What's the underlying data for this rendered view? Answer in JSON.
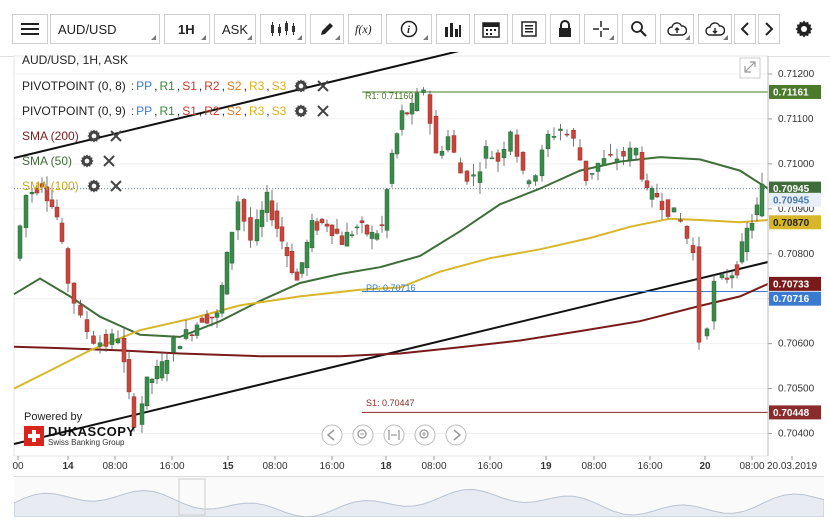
{
  "toolbar": {
    "instrument": "AUD/USD",
    "timeframe": "1H",
    "side": "ASK"
  },
  "legend": {
    "title": "AUD/USD, 1H, ASK",
    "pivot1_name": "PIVOTPOINT (0, 8)",
    "pivot2_name": "PIVOTPOINT (0, 9)",
    "pivot_levels_sep": ":",
    "pivot_levels": [
      "PP",
      "R1",
      "S1",
      "R2",
      "S2",
      "R3",
      "S3"
    ],
    "sma200": "SMA (200)",
    "sma50": "SMA (50)",
    "sma100": "SMA (100)"
  },
  "levels": {
    "r1_label": "R1: 0.71160",
    "pp_label": "PP: 0.70716",
    "s1_label": "S1: 0.70447"
  },
  "price_axis": [
    "0.71200",
    "0.71100",
    "0.71000",
    "0.70900",
    "0.70800",
    "0.70700",
    "0.70600",
    "0.70500",
    "0.70400"
  ],
  "price_badges": {
    "r1": "0.71161",
    "sma50": "0.70945",
    "current": "0.70945",
    "sma100": "0.70870",
    "sma200": "0.70733",
    "pp": "0.70716",
    "s1": "0.70448"
  },
  "time_axis": [
    "00",
    "14",
    "08:00",
    "16:00",
    "15",
    "08:00",
    "16:00",
    "18",
    "08:00",
    "16:00",
    "19",
    "08:00",
    "16:00",
    "20",
    "08:00",
    "20.03.2019"
  ],
  "branding": {
    "powered_by": "Powered by",
    "name": "DUKASCOPY",
    "sub": "Swiss Banking Group"
  },
  "colors": {
    "up": "#3a8a4a",
    "down": "#c8453c",
    "sma200": "#7a1a1a",
    "sma50": "#3f6e3a",
    "sma100": "#d7b62a",
    "r1": "#4a7a2a",
    "pp": "#3a7ad0",
    "s1": "#8a2a2a"
  },
  "chart_data": {
    "type": "candlestick",
    "price_ticks": [
      0.712,
      0.711,
      0.71,
      0.709,
      0.708,
      0.707,
      0.706,
      0.705,
      0.704
    ],
    "levels": {
      "R1": 0.7116,
      "PP": 0.70716,
      "S1": 0.70447
    },
    "last_price": 0.70945
  }
}
